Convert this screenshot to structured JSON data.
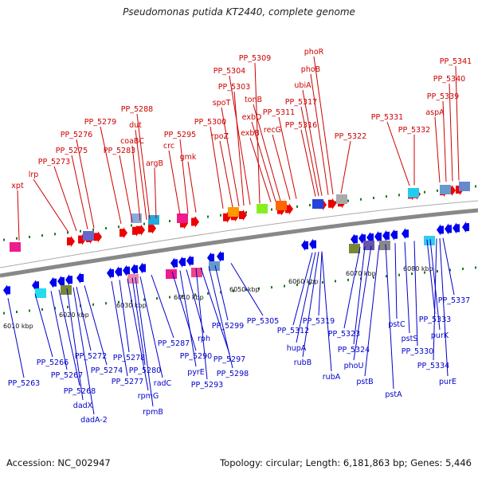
{
  "title": "Pseudomonas putida KT2440, complete genome",
  "footer": {
    "accession": "Accession: NC_002947",
    "stats": "Topology: circular; Length: 6,181,863 bp; Genes: 5,446"
  },
  "colors": {
    "top_label": "#cc0000",
    "bottom_label": "#0000cc",
    "forward": "#ee0000",
    "reverse": "#0000ee",
    "backbone": "#888888",
    "dot": "#1a7a1a"
  },
  "ticks": [
    "6010 kbp",
    "6020 kbp",
    "6030 kbp",
    "6040 kbp",
    "6050 kbp",
    "6060 kbp",
    "6070 kbp",
    "6080 kbp"
  ],
  "top_labels": [
    "xpt",
    "lrp",
    "PP_5273",
    "PP_5275",
    "PP_5276",
    "PP_5279",
    "PP_5283",
    "coaBC",
    "dut",
    "PP_5288",
    "argB",
    "crc",
    "PP_5295",
    "gmk",
    "PP_5300",
    "rpoZ",
    "spoT",
    "PP_5303",
    "PP_5304",
    "PP_5309",
    "exbB",
    "exbD",
    "tonB",
    "recG",
    "PP_5311",
    "PP_5316",
    "PP_5317",
    "ubiA",
    "phoB",
    "phoR",
    "PP_5322",
    "PP_5331",
    "PP_5332",
    "aspA",
    "PP_5339",
    "PP_5340",
    "PP_5341"
  ],
  "bottom_labels": [
    "PP_5263",
    "PP_5266",
    "PP_5267",
    "PP_5268",
    "dadX",
    "dadA-2",
    "PP_5272",
    "PP_5274",
    "PP_5277",
    "PP_5278",
    "rpmG",
    "PP_5280",
    "rpmB",
    "radC",
    "PP_5287",
    "PP_5290",
    "pyrE",
    "rph",
    "PP_5293",
    "PP_5297",
    "PP_5298",
    "PP_5299",
    "PP_5305",
    "PP_5312",
    "hupA",
    "rubB",
    "PP_5319",
    "rubA",
    "PP_5323",
    "PP_5324",
    "phoU",
    "pstB",
    "pstA",
    "pstC",
    "pstS",
    "PP_5330",
    "PP_5333",
    "purK",
    "PP_5334",
    "purE",
    "PP_5337"
  ]
}
